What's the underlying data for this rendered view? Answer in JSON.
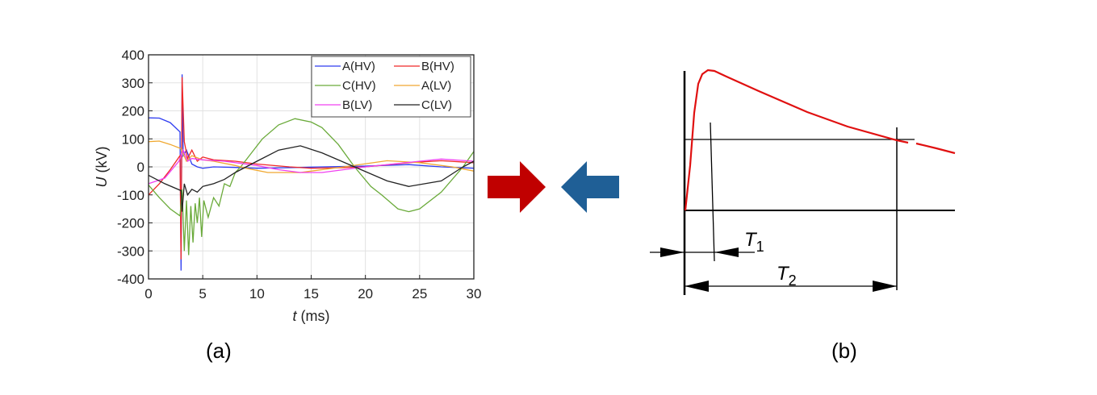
{
  "chart_data": [
    {
      "panel_label": "(a)",
      "type": "line",
      "xlabel_italic": "t",
      "xlabel_unit": "(ms)",
      "ylabel_italic": "U",
      "ylabel_unit": "(kV)",
      "xlim": [
        0,
        30
      ],
      "ylim": [
        -400,
        400
      ],
      "xticks": [
        0,
        5,
        10,
        15,
        20,
        25,
        30
      ],
      "yticks": [
        -400,
        -300,
        -200,
        -100,
        0,
        100,
        200,
        300,
        400
      ],
      "grid": true,
      "legend_placement": "top-right",
      "series": [
        {
          "name": "A(HV)",
          "color": "#2e3cf0",
          "points": [
            [
              0,
              175
            ],
            [
              1,
              174
            ],
            [
              2,
              158
            ],
            [
              2.9,
              125
            ],
            [
              3.0,
              -370
            ],
            [
              3.1,
              330
            ],
            [
              3.2,
              40
            ],
            [
              3.5,
              60
            ],
            [
              4,
              10
            ],
            [
              4.5,
              0
            ],
            [
              5,
              -5
            ],
            [
              6,
              0
            ],
            [
              8,
              -2
            ],
            [
              10,
              -5
            ],
            [
              13,
              -3
            ],
            [
              16,
              0
            ],
            [
              20,
              3
            ],
            [
              24,
              8
            ],
            [
              27,
              0
            ],
            [
              30,
              -5
            ]
          ]
        },
        {
          "name": "B(HV)",
          "color": "#f02828",
          "points": [
            [
              0,
              -100
            ],
            [
              1,
              -60
            ],
            [
              2,
              -10
            ],
            [
              2.9,
              40
            ],
            [
              3.0,
              -330
            ],
            [
              3.1,
              320
            ],
            [
              3.3,
              90
            ],
            [
              3.6,
              30
            ],
            [
              4,
              60
            ],
            [
              4.5,
              20
            ],
            [
              5,
              35
            ],
            [
              6,
              25
            ],
            [
              8,
              20
            ],
            [
              10,
              10
            ],
            [
              13,
              0
            ],
            [
              15,
              -5
            ],
            [
              18,
              -3
            ],
            [
              20,
              0
            ],
            [
              24,
              15
            ],
            [
              27,
              22
            ],
            [
              30,
              15
            ]
          ]
        },
        {
          "name": "C(HV)",
          "color": "#6aaa3a",
          "points": [
            [
              0,
              -65
            ],
            [
              1,
              -110
            ],
            [
              2,
              -150
            ],
            [
              2.9,
              -175
            ],
            [
              3.1,
              -80
            ],
            [
              3.3,
              -300
            ],
            [
              3.5,
              -120
            ],
            [
              3.7,
              -315
            ],
            [
              3.9,
              -140
            ],
            [
              4.1,
              -270
            ],
            [
              4.3,
              -130
            ],
            [
              4.5,
              -200
            ],
            [
              4.7,
              -110
            ],
            [
              4.9,
              -250
            ],
            [
              5.1,
              -120
            ],
            [
              5.5,
              -180
            ],
            [
              6,
              -110
            ],
            [
              6.5,
              -140
            ],
            [
              7,
              -60
            ],
            [
              7.5,
              -70
            ],
            [
              8,
              -20
            ],
            [
              8.5,
              0
            ],
            [
              9.5,
              50
            ],
            [
              10.5,
              100
            ],
            [
              12,
              150
            ],
            [
              13.5,
              172
            ],
            [
              15,
              160
            ],
            [
              16,
              140
            ],
            [
              17.5,
              80
            ],
            [
              19,
              0
            ],
            [
              20.5,
              -70
            ],
            [
              21.5,
              -100
            ],
            [
              23,
              -150
            ],
            [
              24,
              -160
            ],
            [
              25,
              -150
            ],
            [
              27,
              -90
            ],
            [
              29,
              0
            ],
            [
              30,
              55
            ]
          ]
        },
        {
          "name": "A(LV)",
          "color": "#f0a830",
          "points": [
            [
              0,
              90
            ],
            [
              1,
              92
            ],
            [
              2,
              80
            ],
            [
              3,
              65
            ],
            [
              3.5,
              20
            ],
            [
              4,
              40
            ],
            [
              5,
              25
            ],
            [
              6,
              20
            ],
            [
              8,
              5
            ],
            [
              9,
              -5
            ],
            [
              11,
              -20
            ],
            [
              14,
              -20
            ],
            [
              18,
              0
            ],
            [
              22,
              22
            ],
            [
              25,
              15
            ],
            [
              28,
              0
            ],
            [
              30,
              -15
            ]
          ]
        },
        {
          "name": "B(LV)",
          "color": "#f040f0",
          "points": [
            [
              0,
              -60
            ],
            [
              1.5,
              -40
            ],
            [
              2.8,
              20
            ],
            [
              3.2,
              60
            ],
            [
              3.6,
              20
            ],
            [
              4,
              30
            ],
            [
              5,
              25
            ],
            [
              7,
              20
            ],
            [
              10,
              5
            ],
            [
              12,
              -10
            ],
            [
              14,
              -20
            ],
            [
              16,
              -20
            ],
            [
              20,
              0
            ],
            [
              25,
              20
            ],
            [
              27,
              28
            ],
            [
              30,
              20
            ]
          ]
        },
        {
          "name": "C(LV)",
          "color": "#222222",
          "points": [
            [
              0,
              -30
            ],
            [
              1.5,
              -60
            ],
            [
              3,
              -85
            ],
            [
              3.1,
              -160
            ],
            [
              3.3,
              -60
            ],
            [
              3.6,
              -100
            ],
            [
              4,
              -80
            ],
            [
              4.5,
              -90
            ],
            [
              5,
              -70
            ],
            [
              6,
              -60
            ],
            [
              7,
              -45
            ],
            [
              8,
              -20
            ],
            [
              10,
              20
            ],
            [
              12,
              60
            ],
            [
              14,
              75
            ],
            [
              16,
              50
            ],
            [
              19,
              0
            ],
            [
              22,
              -50
            ],
            [
              24,
              -70
            ],
            [
              27,
              -50
            ],
            [
              29,
              0
            ],
            [
              30,
              20
            ]
          ]
        }
      ]
    },
    {
      "panel_label": "(b)",
      "type": "line",
      "annotations": [
        "T1",
        "T2"
      ]
    }
  ],
  "arrows": {
    "red": "#c00000",
    "blue": "#1f5f96"
  }
}
